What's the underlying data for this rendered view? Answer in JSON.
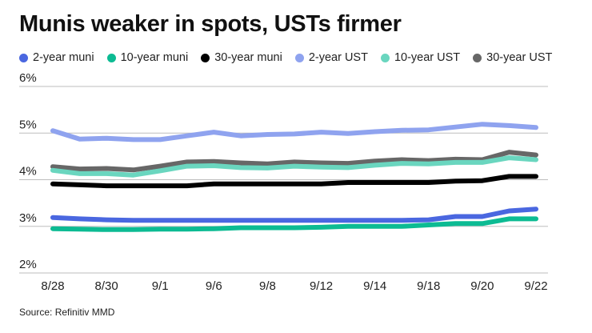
{
  "chart_data": {
    "type": "line",
    "title": "Munis weaker in spots, USTs firmer",
    "xlabel": "",
    "ylabel": "",
    "ylim": [
      2,
      6
    ],
    "yticks": [
      "2%",
      "3%",
      "4%",
      "5%",
      "6%"
    ],
    "ytick_values": [
      2,
      3,
      4,
      5,
      6
    ],
    "xtick_labels": [
      "8/28",
      "",
      "8/30",
      "",
      "9/1",
      "",
      "9/6",
      "",
      "9/8",
      "",
      "9/12",
      "",
      "9/14",
      "",
      "9/18",
      "",
      "9/20",
      "",
      "9/22"
    ],
    "grid": true,
    "legend_position": "top",
    "series": [
      {
        "name": "2-year muni",
        "color": "#4a67e0",
        "values": [
          3.19,
          3.16,
          3.14,
          3.13,
          3.13,
          3.13,
          3.13,
          3.13,
          3.13,
          3.13,
          3.13,
          3.13,
          3.13,
          3.13,
          3.14,
          3.21,
          3.21,
          3.33,
          3.37
        ]
      },
      {
        "name": "10-year muni",
        "color": "#0cbb93",
        "values": [
          2.95,
          2.94,
          2.93,
          2.93,
          2.94,
          2.94,
          2.95,
          2.97,
          2.97,
          2.97,
          2.98,
          3.0,
          3.0,
          3.0,
          3.03,
          3.06,
          3.06,
          3.16,
          3.16
        ]
      },
      {
        "name": "30-year muni",
        "color": "#000000",
        "values": [
          3.91,
          3.89,
          3.87,
          3.87,
          3.87,
          3.87,
          3.91,
          3.91,
          3.91,
          3.91,
          3.91,
          3.94,
          3.94,
          3.94,
          3.94,
          3.97,
          3.98,
          4.07,
          4.07
        ]
      },
      {
        "name": "2-year UST",
        "color": "#8fa3ef",
        "values": [
          5.05,
          4.87,
          4.89,
          4.86,
          4.86,
          4.94,
          5.02,
          4.94,
          4.97,
          4.98,
          5.02,
          4.99,
          5.03,
          5.06,
          5.07,
          5.13,
          5.19,
          5.16,
          5.12
        ]
      },
      {
        "name": "10-year UST",
        "color": "#6ad6bf",
        "values": [
          4.2,
          4.13,
          4.13,
          4.1,
          4.19,
          4.29,
          4.3,
          4.26,
          4.25,
          4.29,
          4.27,
          4.26,
          4.31,
          4.35,
          4.34,
          4.37,
          4.37,
          4.47,
          4.43
        ]
      },
      {
        "name": "30-year UST",
        "color": "#676767",
        "values": [
          4.28,
          4.23,
          4.24,
          4.21,
          4.29,
          4.38,
          4.39,
          4.36,
          4.34,
          4.38,
          4.36,
          4.35,
          4.4,
          4.43,
          4.41,
          4.44,
          4.43,
          4.59,
          4.53
        ]
      }
    ],
    "source": "Source: Refinitiv MMD"
  }
}
